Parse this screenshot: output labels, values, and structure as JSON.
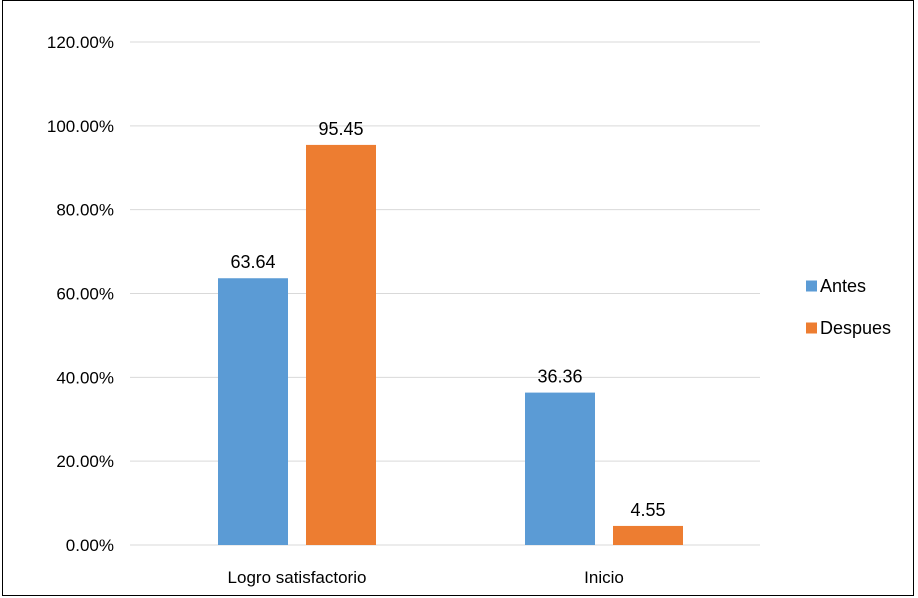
{
  "chart_data": {
    "type": "bar",
    "title": "",
    "xlabel": "",
    "ylabel": "",
    "categories": [
      "Logro satisfactorio",
      "Inicio"
    ],
    "series": [
      {
        "name": "Antes",
        "values": [
          63.64,
          36.36
        ],
        "color": "#5B9BD5"
      },
      {
        "name": "Despues",
        "values": [
          95.45,
          4.55
        ],
        "color": "#ED7D31"
      }
    ],
    "data_labels": [
      [
        "63.64",
        "36.36"
      ],
      [
        "95.45",
        "4.55"
      ]
    ],
    "ylim": [
      0,
      120
    ],
    "y_ticks": [
      0,
      20,
      40,
      60,
      80,
      100,
      120
    ],
    "y_tick_labels": [
      "0.00%",
      "20.00%",
      "40.00%",
      "60.00%",
      "80.00%",
      "100.00%",
      "120.00%"
    ],
    "grid": true,
    "gridline_color": "#D9D9D9",
    "legend_position": "right"
  }
}
